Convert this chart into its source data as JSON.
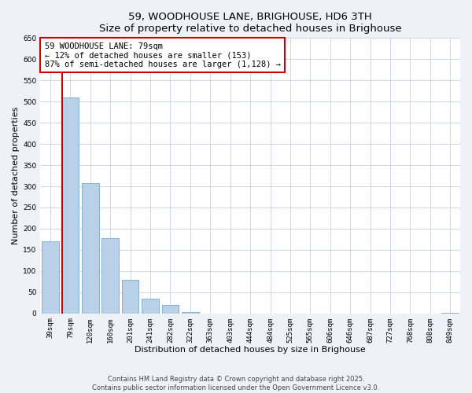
{
  "title": "59, WOODHOUSE LANE, BRIGHOUSE, HD6 3TH",
  "subtitle": "Size of property relative to detached houses in Brighouse",
  "xlabel": "Distribution of detached houses by size in Brighouse",
  "ylabel": "Number of detached properties",
  "bin_labels": [
    "39sqm",
    "79sqm",
    "120sqm",
    "160sqm",
    "201sqm",
    "241sqm",
    "282sqm",
    "322sqm",
    "363sqm",
    "403sqm",
    "444sqm",
    "484sqm",
    "525sqm",
    "565sqm",
    "606sqm",
    "646sqm",
    "687sqm",
    "727sqm",
    "768sqm",
    "808sqm",
    "849sqm"
  ],
  "bar_values": [
    170,
    510,
    308,
    177,
    79,
    35,
    20,
    4,
    0,
    0,
    0,
    0,
    0,
    0,
    0,
    0,
    0,
    0,
    0,
    0,
    2
  ],
  "bar_color": "#b8d0e8",
  "bar_edge_color": "#7aaac8",
  "highlight_line_color": "#cc0000",
  "annotation_box_color": "#cc0000",
  "annotation_line1": "59 WOODHOUSE LANE: 79sqm",
  "annotation_line2": "← 12% of detached houses are smaller (153)",
  "annotation_line3": "87% of semi-detached houses are larger (1,128) →",
  "ylim": [
    0,
    650
  ],
  "yticks": [
    0,
    50,
    100,
    150,
    200,
    250,
    300,
    350,
    400,
    450,
    500,
    550,
    600,
    650
  ],
  "bg_color": "#eef2f8",
  "plot_bg_color": "#ffffff",
  "grid_color": "#c8cfe0",
  "footer_line1": "Contains HM Land Registry data © Crown copyright and database right 2025.",
  "footer_line2": "Contains public sector information licensed under the Open Government Licence v3.0.",
  "title_fontsize": 9.5,
  "subtitle_fontsize": 8.5,
  "axis_label_fontsize": 8.0,
  "tick_fontsize": 6.5,
  "annotation_fontsize": 7.5,
  "footer_fontsize": 6.0
}
